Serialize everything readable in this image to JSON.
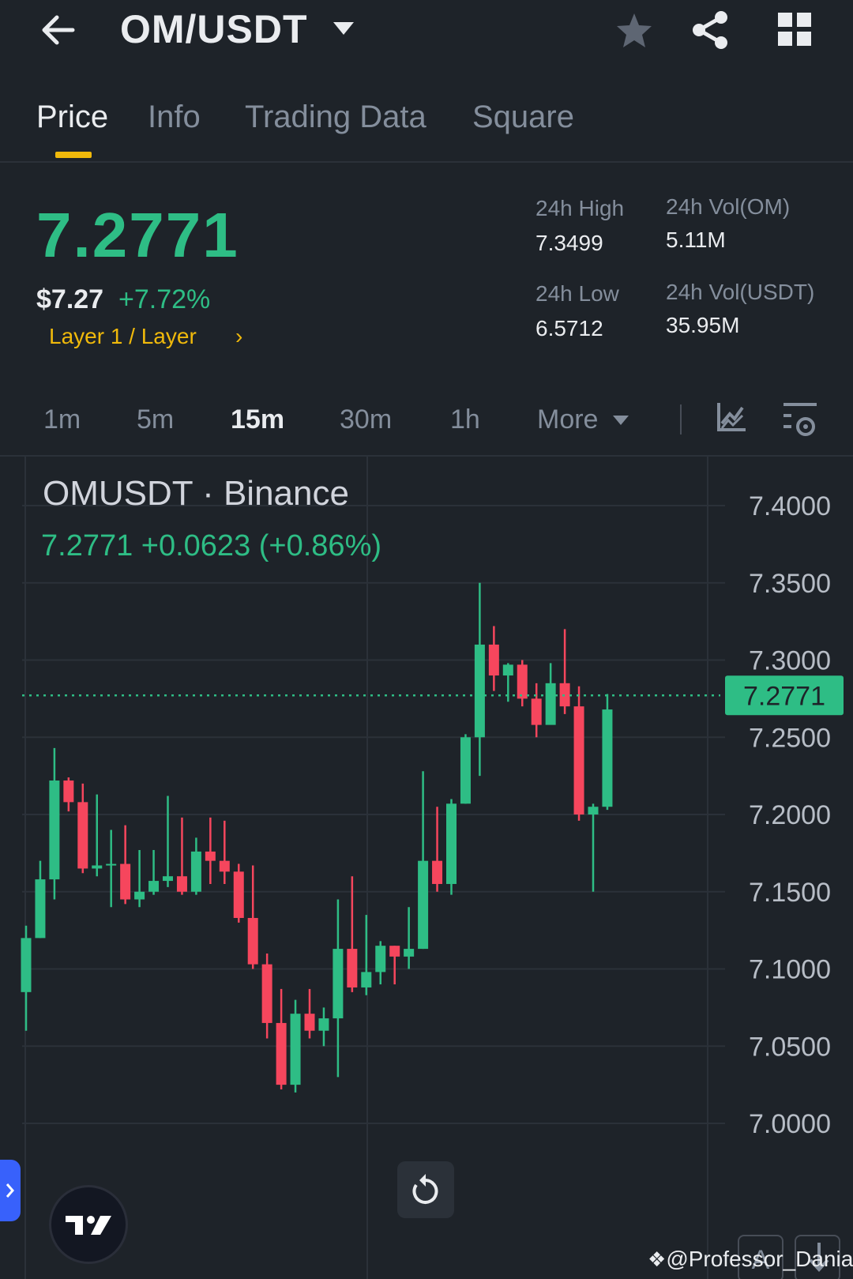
{
  "header": {
    "title": "OM/USDT",
    "icons": [
      "back-arrow-icon",
      "caret-down-icon",
      "star-icon",
      "share-icon",
      "grid-icon"
    ]
  },
  "tabs": [
    {
      "label": "Price",
      "active": true
    },
    {
      "label": "Info",
      "active": false
    },
    {
      "label": "Trading Data",
      "active": false
    },
    {
      "label": "Square",
      "active": false
    }
  ],
  "ticker": {
    "last_price": "7.2771",
    "fiat_price": "$7.27",
    "change_pct": "+7.72%",
    "tag": "Layer 1 / Layer",
    "tag_chevron": "›",
    "high_label": "24h High",
    "high_value": "7.3499",
    "low_label": "24h Low",
    "low_value": "6.5712",
    "vol_base_label": "24h Vol(OM)",
    "vol_base_value": "5.11M",
    "vol_quote_label": "24h Vol(USDT)",
    "vol_quote_value": "35.95M"
  },
  "intervals": [
    {
      "label": "1m",
      "active": false
    },
    {
      "label": "5m",
      "active": false
    },
    {
      "label": "15m",
      "active": true
    },
    {
      "label": "30m",
      "active": false
    },
    {
      "label": "1h",
      "active": false
    },
    {
      "label": "More",
      "active": false
    }
  ],
  "chart": {
    "title": "OMUSDT · Binance",
    "quote": "7.2771  +0.0623 (+0.86%)",
    "watermark": "@Professor_Danial",
    "font_button": "A"
  },
  "colors": {
    "up": "#2ebd85",
    "down": "#f6465d",
    "accent": "#f0b90b",
    "background": "#1e2329"
  },
  "chart_data": {
    "type": "candlestick",
    "y_ticks": [
      "7.4000",
      "7.3500",
      "7.3000",
      "7.2500",
      "7.2000",
      "7.1500",
      "7.1000",
      "7.0500",
      "7.0000"
    ],
    "ylim": [
      6.95,
      7.43
    ],
    "last_price_label": "7.2771",
    "last_price": 7.2771,
    "candles": [
      [
        7.085,
        7.12,
        7.06,
        7.128
      ],
      [
        7.12,
        7.158,
        7.12,
        7.17
      ],
      [
        7.158,
        7.222,
        7.145,
        7.243
      ],
      [
        7.222,
        7.208,
        7.202,
        7.224
      ],
      [
        7.208,
        7.165,
        7.162,
        7.22
      ],
      [
        7.165,
        7.167,
        7.16,
        7.213
      ],
      [
        7.167,
        7.168,
        7.14,
        7.19
      ],
      [
        7.168,
        7.145,
        7.142,
        7.193
      ],
      [
        7.145,
        7.15,
        7.14,
        7.177
      ],
      [
        7.15,
        7.157,
        7.148,
        7.177
      ],
      [
        7.157,
        7.16,
        7.153,
        7.212
      ],
      [
        7.16,
        7.15,
        7.148,
        7.198
      ],
      [
        7.15,
        7.176,
        7.148,
        7.185
      ],
      [
        7.176,
        7.17,
        7.155,
        7.198
      ],
      [
        7.17,
        7.163,
        7.155,
        7.196
      ],
      [
        7.163,
        7.133,
        7.13,
        7.168
      ],
      [
        7.133,
        7.103,
        7.1,
        7.167
      ],
      [
        7.103,
        7.065,
        7.055,
        7.11
      ],
      [
        7.065,
        7.025,
        7.022,
        7.087
      ],
      [
        7.025,
        7.071,
        7.02,
        7.08
      ],
      [
        7.071,
        7.06,
        7.055,
        7.087
      ],
      [
        7.06,
        7.068,
        7.05,
        7.075
      ],
      [
        7.068,
        7.113,
        7.03,
        7.145
      ],
      [
        7.113,
        7.088,
        7.085,
        7.16
      ],
      [
        7.088,
        7.098,
        7.083,
        7.135
      ],
      [
        7.098,
        7.115,
        7.09,
        7.118
      ],
      [
        7.115,
        7.108,
        7.09,
        7.115
      ],
      [
        7.108,
        7.113,
        7.1,
        7.14
      ],
      [
        7.113,
        7.17,
        7.113,
        7.228
      ],
      [
        7.17,
        7.155,
        7.15,
        7.205
      ],
      [
        7.155,
        7.207,
        7.148,
        7.21
      ],
      [
        7.207,
        7.25,
        7.207,
        7.252
      ],
      [
        7.25,
        7.31,
        7.225,
        7.35
      ],
      [
        7.31,
        7.29,
        7.28,
        7.322
      ],
      [
        7.29,
        7.297,
        7.273,
        7.298
      ],
      [
        7.297,
        7.275,
        7.27,
        7.3
      ],
      [
        7.275,
        7.258,
        7.25,
        7.285
      ],
      [
        7.258,
        7.285,
        7.262,
        7.298
      ],
      [
        7.285,
        7.27,
        7.265,
        7.32
      ],
      [
        7.27,
        7.2,
        7.196,
        7.283
      ],
      [
        7.2,
        7.205,
        7.15,
        7.207
      ],
      [
        7.205,
        7.268,
        7.203,
        7.278
      ]
    ]
  }
}
